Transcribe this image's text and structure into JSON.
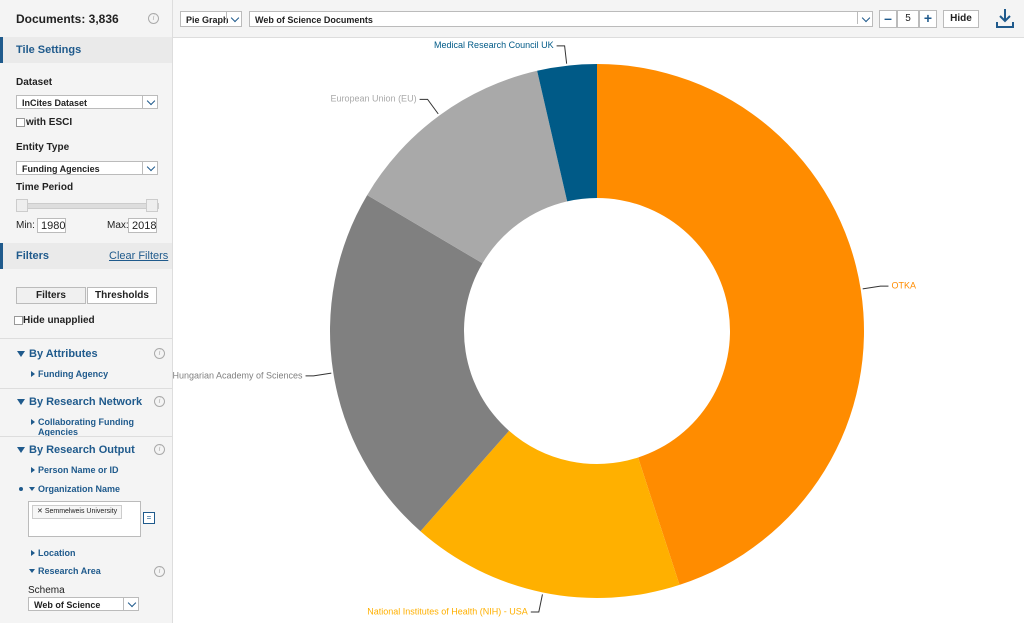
{
  "sidebar": {
    "documents": "Documents: 3,836",
    "tile_settings": "Tile Settings",
    "dataset_label": "Dataset",
    "dataset": "InCites Dataset",
    "esci": "with ESCI",
    "entity_type_label": "Entity Type",
    "entity_type": "Funding Agencies",
    "time_period_label": "Time Period",
    "min_label": "Min:",
    "min": "1980",
    "max_label": "Max:",
    "max": "2018",
    "filters_title": "Filters",
    "clear_filters": "Clear Filters",
    "tabs": [
      "Filters",
      "Thresholds"
    ],
    "hide_unapplied": "Hide unapplied",
    "by_attributes": {
      "title": "By Attributes",
      "items": [
        "Funding Agency"
      ]
    },
    "by_research_network": {
      "title": "By Research Network",
      "items": [
        "Collaborating Funding Agencies"
      ]
    },
    "by_research_output": {
      "title": "By Research Output",
      "items": [
        "Person Name or ID",
        "Organization Name",
        "Location",
        "Research Area"
      ],
      "organization_tag": "Semmelweis University",
      "schema_label": "Schema",
      "schema": "Web of Science"
    }
  },
  "toolbar": {
    "chart_type": "Pie Graph",
    "source": "Web of Science Documents",
    "count": "5",
    "hide": "Hide"
  },
  "chart_data": {
    "type": "pie",
    "donut": true,
    "categories": [
      "OTKA",
      "National Institutes of Health (NIH) - USA",
      "Hungarian Academy of Sciences",
      "European Union (EU)",
      "Medical Research Council UK"
    ],
    "values": [
      45,
      16.5,
      22,
      12.9,
      3.6
    ],
    "colors": [
      "#ff8c00",
      "#ffb000",
      "#808080",
      "#a9a9a9",
      "#005a87"
    ]
  }
}
